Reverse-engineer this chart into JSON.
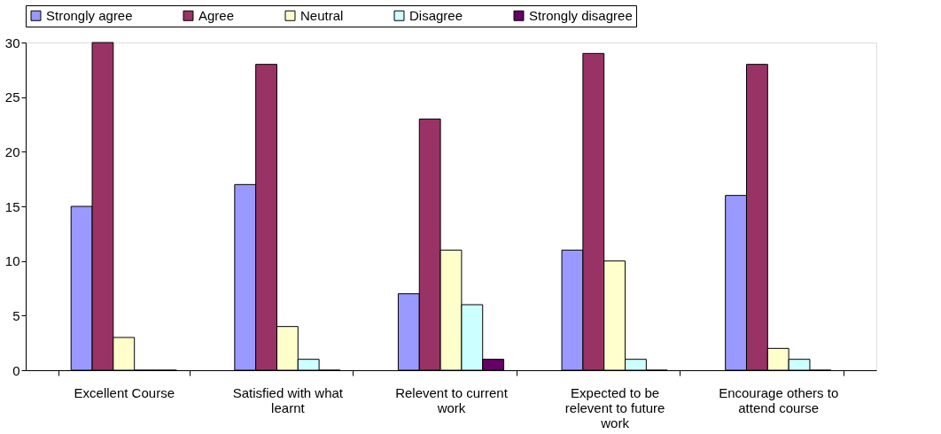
{
  "chart_data": {
    "type": "bar",
    "categories": [
      "Excellent Course",
      "Satisfied with what learnt",
      "Relevent to current work",
      "Expected to be relevent to future work",
      "Encourage others to attend course"
    ],
    "series": [
      {
        "name": "Strongly agree",
        "color": "#9999ff",
        "values": [
          15,
          17,
          7,
          11,
          16
        ]
      },
      {
        "name": "Agree",
        "color": "#993366",
        "values": [
          30,
          28,
          23,
          29,
          28
        ]
      },
      {
        "name": "Neutral",
        "color": "#ffffcc",
        "values": [
          3,
          4,
          11,
          10,
          2
        ]
      },
      {
        "name": "Disagree",
        "color": "#ccffff",
        "values": [
          0,
          1,
          6,
          1,
          1
        ]
      },
      {
        "name": "Strongly disagree",
        "color": "#660066",
        "values": [
          0,
          0,
          1,
          0,
          0
        ]
      }
    ],
    "ylim": [
      0,
      30
    ],
    "yticks": [
      0,
      5,
      10,
      15,
      20,
      25,
      30
    ],
    "grid": false,
    "legend": "top"
  }
}
